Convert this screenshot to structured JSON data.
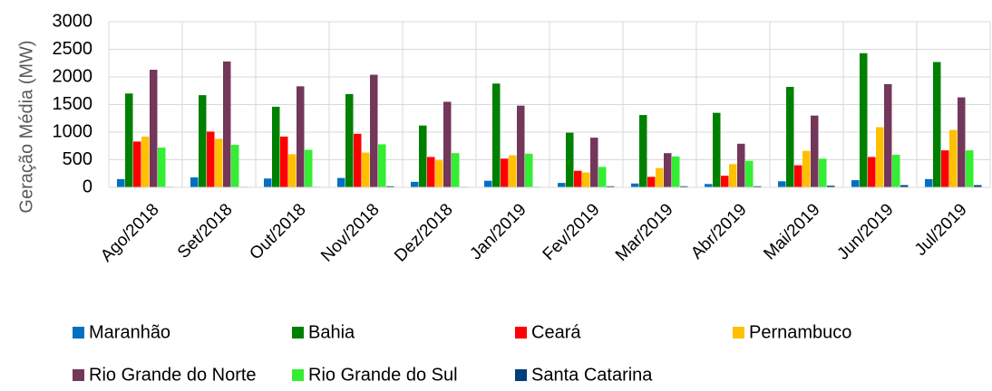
{
  "chart_data": {
    "type": "bar",
    "y_label": "Geração Média (MW)",
    "categories": [
      "Ago/2018",
      "Set/2018",
      "Out/2018",
      "Nov/2018",
      "Dez/2018",
      "Jan/2019",
      "Fev/2019",
      "Mar/2019",
      "Abr/2019",
      "Mai/2019",
      "Jun/2019",
      "Jul/2019"
    ],
    "series": [
      {
        "name": "Maranhão",
        "color": "#0070c0",
        "values": [
          150,
          180,
          160,
          170,
          100,
          120,
          80,
          70,
          60,
          110,
          130,
          150
        ]
      },
      {
        "name": "Bahia",
        "color": "#008000",
        "values": [
          1700,
          1670,
          1460,
          1690,
          1120,
          1880,
          990,
          1310,
          1350,
          1820,
          2430,
          2270
        ]
      },
      {
        "name": "Ceará",
        "color": "#ff0000",
        "values": [
          830,
          1010,
          920,
          970,
          550,
          520,
          300,
          190,
          210,
          400,
          550,
          670
        ]
      },
      {
        "name": "Pernambuco",
        "color": "#ffc000",
        "values": [
          920,
          880,
          600,
          630,
          490,
          580,
          270,
          350,
          420,
          660,
          1090,
          1040
        ]
      },
      {
        "name": "Rio Grande do Norte",
        "color": "#73375a",
        "values": [
          2130,
          2280,
          1830,
          2040,
          1550,
          1480,
          900,
          620,
          790,
          1300,
          1870,
          1630
        ]
      },
      {
        "name": "Rio Grande do Sul",
        "color": "#33ee33",
        "values": [
          720,
          770,
          680,
          780,
          620,
          610,
          370,
          560,
          480,
          520,
          590,
          670
        ]
      },
      {
        "name": "Santa Catarina",
        "color": "#003f7a",
        "values": [
          10,
          10,
          10,
          20,
          10,
          10,
          20,
          20,
          20,
          30,
          40,
          40
        ]
      }
    ],
    "ylim": [
      0,
      3000
    ],
    "yticks": [
      0,
      500,
      1000,
      1500,
      2000,
      2500,
      3000
    ],
    "grid": true,
    "legend": "bottom"
  }
}
